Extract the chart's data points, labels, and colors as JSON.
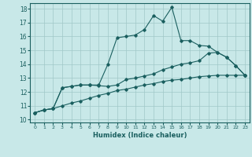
{
  "title": "",
  "xlabel": "Humidex (Indice chaleur)",
  "ylabel": "",
  "bg_color": "#c8e8e8",
  "grid_color": "#a0c8c8",
  "line_color": "#1a5f5f",
  "xlim": [
    -0.5,
    23.5
  ],
  "ylim": [
    9.8,
    18.4
  ],
  "xticks": [
    0,
    1,
    2,
    3,
    4,
    5,
    6,
    7,
    8,
    9,
    10,
    11,
    12,
    13,
    14,
    15,
    16,
    17,
    18,
    19,
    20,
    21,
    22,
    23
  ],
  "yticks": [
    10,
    11,
    12,
    13,
    14,
    15,
    16,
    17,
    18
  ],
  "line1_x": [
    0,
    1,
    2,
    3,
    4,
    5,
    6,
    7,
    8,
    9,
    10,
    11,
    12,
    13,
    14,
    15,
    16,
    17,
    18,
    19,
    20,
    21,
    22,
    23
  ],
  "line1_y": [
    10.5,
    10.7,
    10.8,
    12.3,
    12.4,
    12.5,
    12.5,
    12.5,
    14.0,
    15.9,
    16.0,
    16.1,
    16.5,
    17.5,
    17.1,
    18.1,
    15.7,
    15.7,
    15.35,
    15.3,
    14.85,
    14.5,
    13.9,
    13.2
  ],
  "line2_x": [
    0,
    1,
    2,
    3,
    4,
    5,
    6,
    7,
    8,
    9,
    10,
    11,
    12,
    13,
    14,
    15,
    16,
    17,
    18,
    19,
    20,
    21,
    22,
    23
  ],
  "line2_y": [
    10.5,
    10.7,
    10.8,
    12.3,
    12.4,
    12.5,
    12.5,
    12.45,
    12.4,
    12.5,
    12.9,
    13.0,
    13.15,
    13.3,
    13.6,
    13.8,
    14.0,
    14.1,
    14.25,
    14.8,
    14.85,
    14.5,
    13.9,
    13.2
  ],
  "line3_x": [
    0,
    1,
    2,
    3,
    4,
    5,
    6,
    7,
    8,
    9,
    10,
    11,
    12,
    13,
    14,
    15,
    16,
    17,
    18,
    19,
    20,
    21,
    22,
    23
  ],
  "line3_y": [
    10.5,
    10.7,
    10.8,
    11.0,
    11.2,
    11.35,
    11.55,
    11.75,
    11.9,
    12.1,
    12.2,
    12.35,
    12.5,
    12.6,
    12.75,
    12.85,
    12.9,
    13.0,
    13.1,
    13.15,
    13.2,
    13.2,
    13.2,
    13.2
  ],
  "figsize": [
    3.2,
    2.0
  ],
  "dpi": 100
}
